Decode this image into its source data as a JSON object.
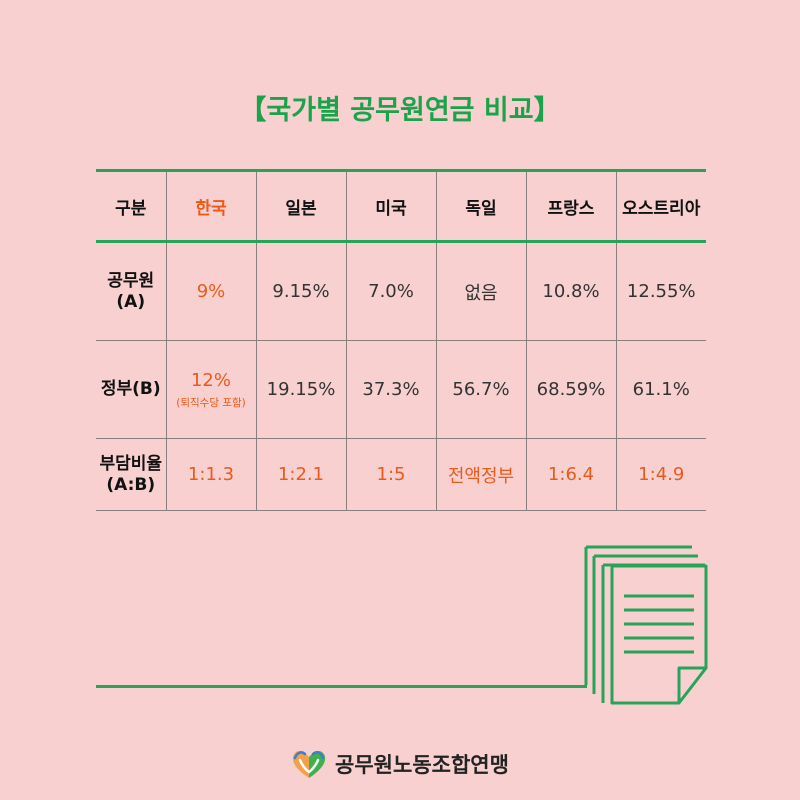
{
  "title": "【국가별 공무원연금 비교】",
  "table": {
    "headers": [
      "구분",
      "한국",
      "일본",
      "미국",
      "독일",
      "프랑스",
      "오스트리아"
    ],
    "rows": [
      {
        "label_line1": "공무원",
        "label_line2": "(A)",
        "values": [
          "9%",
          "9.15%",
          "7.0%",
          "없음",
          "10.8%",
          "12.55%"
        ]
      },
      {
        "label_line1": "정부(B)",
        "values": [
          "12%",
          "19.15%",
          "37.3%",
          "56.7%",
          "68.59%",
          "61.1%"
        ],
        "korea_note": "(퇴직수당 포함)"
      },
      {
        "label_line1": "부담비율",
        "label_line2": "(A:B)",
        "values": [
          "1:1.3",
          "1:2.1",
          "1:5",
          "전액정부",
          "1:6.4",
          "1:4.9"
        ]
      }
    ]
  },
  "colors": {
    "background": "#f8d0d0",
    "accent_green": "#27a35a",
    "highlight_orange": "#ea5a1a"
  },
  "icons": [
    "document-stack-icon",
    "union-heart-logo"
  ],
  "footer": {
    "org_name": "공무원노동조합연맹"
  }
}
